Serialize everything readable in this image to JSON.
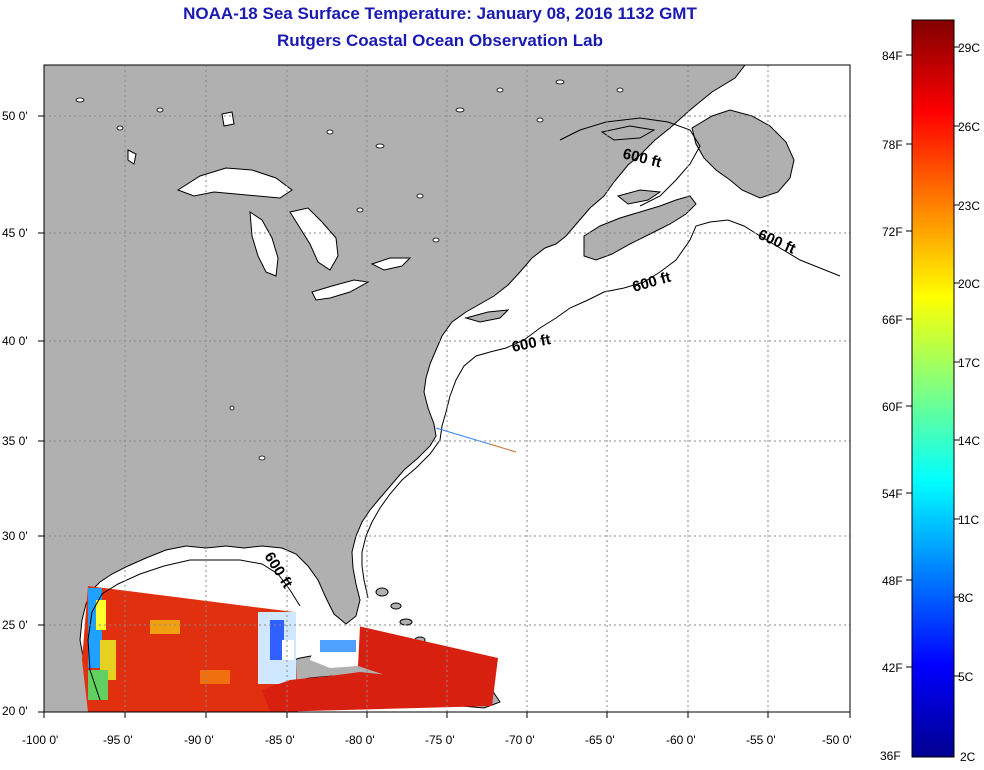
{
  "title": {
    "line1": "NOAA-18 Sea Surface Temperature:  January 08, 2016 1132 GMT",
    "line2": "Rutgers Coastal Ocean Observation Lab"
  },
  "map": {
    "lon_labels": [
      "-100 0'",
      "-95 0'",
      "-90 0'",
      "-85 0'",
      "-80 0'",
      "-75 0'",
      "-70 0'",
      "-65 0'",
      "-60 0'",
      "-55 0'",
      "-50 0'"
    ],
    "lat_labels": [
      "50 0'",
      "45 0'",
      "40 0'",
      "35 0'",
      "30 0'",
      "25 0'",
      "20 0'"
    ],
    "contour_labels": [
      "600 ft",
      "600 ft",
      "600 ft",
      "600 ft",
      "600 ft"
    ],
    "colors": {
      "land": "#b0b0b0",
      "ocean_no_data": "#ffffff",
      "coastline": "#000000",
      "grid": "#8a8a8a"
    }
  },
  "colorbar": {
    "fahrenheit_labels": [
      "84F",
      "78F",
      "72F",
      "66F",
      "60F",
      "54F",
      "48F",
      "42F",
      "36F"
    ],
    "celsius_labels": [
      "29C",
      "26C",
      "23C",
      "20C",
      "17C",
      "14C",
      "11C",
      "8C",
      "5C",
      "2C"
    ],
    "colormap": [
      "#00008f",
      "#0000ff",
      "#0080ff",
      "#00ffff",
      "#80ff80",
      "#ffff00",
      "#ff8000",
      "#ff0000",
      "#800000"
    ]
  }
}
